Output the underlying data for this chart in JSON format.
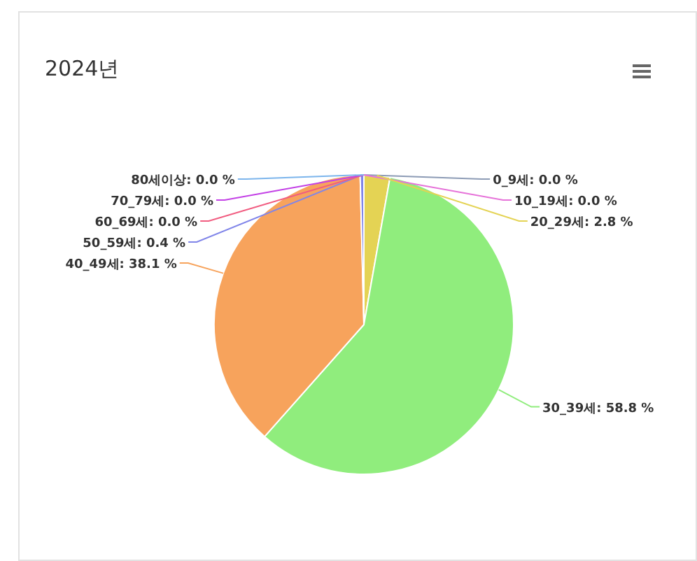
{
  "chart_data": {
    "type": "pie",
    "title": "2024년",
    "categories": [
      "0_9세",
      "10_19세",
      "20_29세",
      "30_39세",
      "40_49세",
      "50_59세",
      "60_69세",
      "70_79세",
      "80세이상"
    ],
    "values": [
      0.0,
      0.0,
      2.8,
      58.8,
      38.1,
      0.4,
      0.0,
      0.0,
      0.0
    ],
    "value_labels": [
      ": 0.0 %",
      ": 0.0 %",
      ": 2.8 %",
      ": 58.8 %",
      ": 38.1 %",
      ": 0.4 %",
      ": 0.0 %",
      ": 0.0 %",
      ": 0.0 %"
    ],
    "colors": [
      "#8c9bb5",
      "#e673d9",
      "#e4d354",
      "#90ed7d",
      "#f7a35c",
      "#8085e9",
      "#f15c80",
      "#c341e6",
      "#7cb5ec"
    ]
  }
}
